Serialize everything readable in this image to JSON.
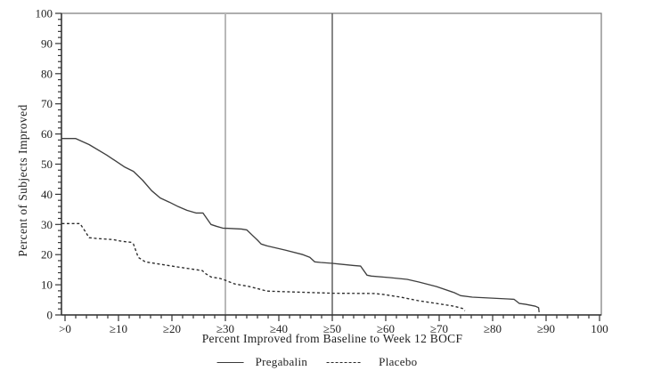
{
  "colors": {
    "background": "#ffffff",
    "axis": "#333333",
    "border": "#777777",
    "text": "#1f1f1f"
  },
  "chart_data": {
    "type": "line",
    "title": "",
    "xlabel": "Percent Improved from Baseline to Week 12 BOCF",
    "ylabel": "Percent of Subjects Improved",
    "xlim": [
      0,
      100
    ],
    "ylim": [
      0,
      100
    ],
    "grid": false,
    "minor_tick_step": 2,
    "x_ticks": {
      "values": [
        0,
        10,
        20,
        30,
        40,
        50,
        60,
        70,
        80,
        90,
        100
      ],
      "labels": [
        ">0",
        "≥10",
        "≥20",
        "≥30",
        "≥40",
        "≥50",
        "≥60",
        "≥70",
        "≥80",
        "≥90",
        "100"
      ]
    },
    "y_ticks": {
      "values": [
        0,
        10,
        20,
        30,
        40,
        50,
        60,
        70,
        80,
        90,
        100
      ],
      "labels": [
        "0",
        "10",
        "20",
        "30",
        "40",
        "50",
        "60",
        "70",
        "80",
        "90",
        "100"
      ]
    },
    "reference_lines": [
      {
        "x": 30,
        "color": "#b8b8b8",
        "width": 2
      },
      {
        "x": 50,
        "color": "#555555",
        "width": 1.4
      }
    ],
    "legend": {
      "position": "bottom",
      "entries": [
        "Pregabalin",
        "Placebo"
      ]
    },
    "series": [
      {
        "name": "Pregabalin",
        "line_style": "solid",
        "color": "#3f3f3f",
        "points": [
          [
            -0.6,
            58.5
          ],
          [
            2,
            58.5
          ],
          [
            4.5,
            56.5
          ],
          [
            7.8,
            53
          ],
          [
            11.2,
            49
          ],
          [
            12.8,
            47.6
          ],
          [
            14.5,
            44.7
          ],
          [
            16.2,
            41.2
          ],
          [
            17.8,
            38.8
          ],
          [
            19.5,
            37.4
          ],
          [
            21.2,
            35.9
          ],
          [
            22.8,
            34.7
          ],
          [
            24.5,
            33.8
          ],
          [
            25.8,
            33.8
          ],
          [
            27.3,
            30
          ],
          [
            28.3,
            29.4
          ],
          [
            29.5,
            28.8
          ],
          [
            33,
            28.5
          ],
          [
            34,
            28.2
          ],
          [
            35,
            26.5
          ],
          [
            36,
            24.8
          ],
          [
            36.7,
            23.5
          ],
          [
            37.8,
            22.9
          ],
          [
            41.2,
            21.5
          ],
          [
            44.5,
            20
          ],
          [
            45.8,
            19.1
          ],
          [
            46.7,
            17.6
          ],
          [
            47.8,
            17.4
          ],
          [
            50,
            17.1
          ],
          [
            54,
            16.4
          ],
          [
            55.3,
            16.2
          ],
          [
            56.5,
            13.2
          ],
          [
            57.3,
            12.9
          ],
          [
            60.7,
            12.4
          ],
          [
            64,
            11.8
          ],
          [
            66.2,
            10.9
          ],
          [
            69.5,
            9.4
          ],
          [
            72.8,
            7.4
          ],
          [
            74,
            6.4
          ],
          [
            76.2,
            5.9
          ],
          [
            82.8,
            5.3
          ],
          [
            84,
            5.2
          ],
          [
            85,
            3.8
          ],
          [
            86.2,
            3.5
          ],
          [
            88,
            2.9
          ],
          [
            88.6,
            2.4
          ],
          [
            88.7,
            0.9
          ]
        ]
      },
      {
        "name": "Placebo",
        "line_style": "dashed",
        "color": "#2a2a2a",
        "points": [
          [
            -0.6,
            30.3
          ],
          [
            2.8,
            30.3
          ],
          [
            3.7,
            27.9
          ],
          [
            4.5,
            25.6
          ],
          [
            6.2,
            25.3
          ],
          [
            9,
            25
          ],
          [
            10.7,
            24.4
          ],
          [
            12.3,
            24.1
          ],
          [
            12.8,
            23.5
          ],
          [
            13.7,
            19.1
          ],
          [
            14.5,
            18.2
          ],
          [
            15,
            17.6
          ],
          [
            20,
            16.2
          ],
          [
            25.7,
            14.7
          ],
          [
            26.2,
            13.8
          ],
          [
            27.3,
            12.6
          ],
          [
            29,
            12.1
          ],
          [
            30,
            11.5
          ],
          [
            31.7,
            10.3
          ],
          [
            34.5,
            9.4
          ],
          [
            37.8,
            7.9
          ],
          [
            42.8,
            7.6
          ],
          [
            50,
            7.2
          ],
          [
            57.8,
            7.1
          ],
          [
            59.5,
            6.8
          ],
          [
            62.8,
            5.9
          ],
          [
            66.2,
            4.7
          ],
          [
            69.5,
            3.8
          ],
          [
            72.8,
            2.9
          ],
          [
            74.5,
            2.1
          ],
          [
            74.8,
            1.4
          ]
        ]
      }
    ]
  }
}
